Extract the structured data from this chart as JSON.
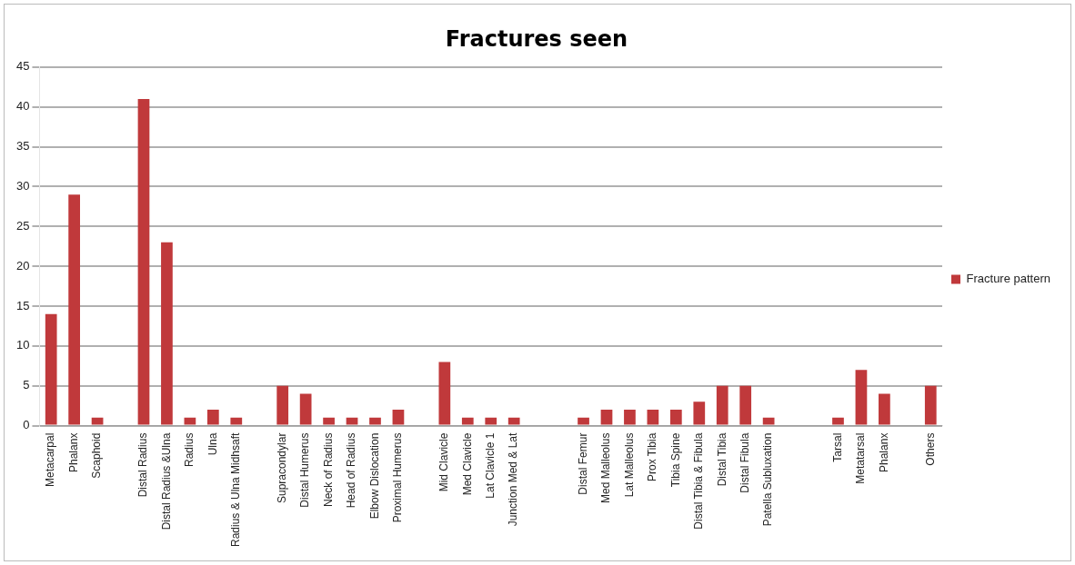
{
  "chart_data": {
    "type": "bar",
    "title": "Fractures seen",
    "categories": [
      "Metacarpal",
      "Phalanx",
      "Scaphoid",
      null,
      "Distal Radius",
      "Distal Radius &Ulna",
      "Radius",
      "Ulna",
      "Radius & Ulna Midhsaft",
      null,
      "Supracondylar",
      "Distal Humerus",
      "Neck of Radius",
      "Head of Radius",
      "Elbow Dislocation",
      "Proximal Humerus",
      null,
      "Mid Clavicle",
      "Med Clavicle",
      "Lat Clavicle 1",
      "Junction Med & Lat",
      null,
      null,
      "Distal Femur",
      "Med Malleolus",
      "Lat Malleolus",
      "Prox Tibia",
      "Tibia Spine",
      "Distal Tibia & Fibula",
      "Distal Tibia",
      "Distal Fibula",
      "Patella Subluxation",
      null,
      null,
      "Tarsal",
      "Metatarsal",
      "Phalanx",
      null,
      "Others"
    ],
    "series": [
      {
        "name": "Fracture pattern",
        "color": "#c0393b",
        "values": [
          14,
          29,
          1,
          null,
          41,
          23,
          1,
          2,
          1,
          null,
          5,
          4,
          1,
          1,
          1,
          2,
          null,
          8,
          1,
          1,
          1,
          null,
          null,
          1,
          2,
          2,
          2,
          2,
          3,
          5,
          5,
          1,
          null,
          null,
          1,
          7,
          4,
          null,
          5
        ]
      }
    ],
    "ylim": [
      0,
      45
    ],
    "yticks": [
      0,
      5,
      10,
      15,
      20,
      25,
      30,
      35,
      40,
      45
    ],
    "grid": "y",
    "legend": "right"
  }
}
